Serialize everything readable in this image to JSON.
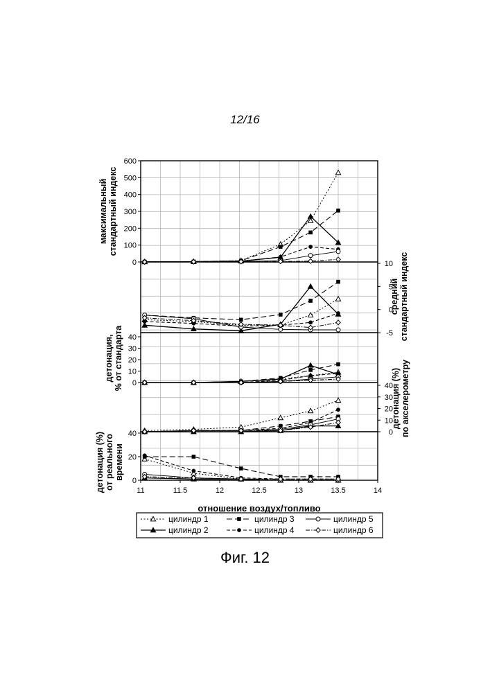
{
  "page_label": "12/16",
  "figure_caption": "Фиг. 12",
  "chart_data": {
    "type": "line",
    "xlabel": "отношение воздух/топливо",
    "x_ticks": [
      "11",
      "11.5",
      "12",
      "12.5",
      "13",
      "13.5",
      "14"
    ],
    "xlim": [
      11,
      14
    ],
    "x": [
      11.05,
      11.67,
      12.27,
      12.77,
      13.15,
      13.5
    ],
    "grid": true,
    "legend_position": "bottom",
    "panels": [
      {
        "id": "max_index",
        "ylabel": "максимальный стандартный индекс",
        "axis": "left",
        "ylim": [
          0,
          600
        ],
        "ticks": [
          "600",
          "500",
          "400",
          "300",
          "200",
          "100",
          "0"
        ],
        "series": [
          {
            "name": "цилиндр 1",
            "values": [
              1,
              2,
              8,
              105,
              245,
              530
            ]
          },
          {
            "name": "цилиндр 2",
            "values": [
              1,
              2,
              5,
              28,
              270,
              115
            ]
          },
          {
            "name": "цилиндр 3",
            "values": [
              1,
              2,
              7,
              90,
              175,
              305
            ]
          },
          {
            "name": "цилиндр 4",
            "values": [
              1,
              1,
              4,
              30,
              90,
              75
            ]
          },
          {
            "name": "цилиндр 5",
            "values": [
              1,
              1,
              3,
              8,
              38,
              62
            ]
          },
          {
            "name": "цилиндр 6",
            "values": [
              0,
              1,
              2,
              3,
              5,
              15
            ]
          }
        ]
      },
      {
        "id": "avg_index",
        "ylabel": "средний стандартный индекс",
        "axis": "right",
        "ylim": [
          -5,
          10
        ],
        "ticks": [
          "10",
          "5",
          "0",
          "-5"
        ],
        "series": [
          {
            "name": "цилиндр 1",
            "values": [
              -2.2,
              -2.6,
              -3.4,
              -3.3,
              -1.2,
              2.3
            ]
          },
          {
            "name": "цилиндр 2",
            "values": [
              -3.4,
              -4.2,
              -4.6,
              -3.2,
              5.0,
              -1.0
            ]
          },
          {
            "name": "цилиндр 3",
            "values": [
              -1.2,
              -1.8,
              -2.2,
              -1.1,
              1.9,
              6.0
            ]
          },
          {
            "name": "цилиндр 4",
            "values": [
              -2.6,
              -3.0,
              -3.6,
              -3.4,
              -2.8,
              -0.8
            ]
          },
          {
            "name": "цилиндр 5",
            "values": [
              -1.2,
              -2.0,
              -3.8,
              -4.3,
              -4.4,
              -4.4
            ]
          },
          {
            "name": "цилиндр 6",
            "values": [
              -1.8,
              -2.4,
              -3.2,
              -3.4,
              -3.9,
              -2.8
            ]
          }
        ]
      },
      {
        "id": "knock_standard",
        "ylabel": "детонация, % от стандарта",
        "axis": "left",
        "ylim": [
          0,
          40
        ],
        "ticks": [
          "40",
          "30",
          "20",
          "10",
          "0"
        ],
        "series": [
          {
            "name": "цилиндр 1",
            "values": [
              0,
              0,
              1,
              3,
              6,
              9
            ]
          },
          {
            "name": "цилиндр 2",
            "values": [
              0,
              0,
              1,
              3,
              15,
              7
            ]
          },
          {
            "name": "цилиндр 3",
            "values": [
              0,
              0,
              1,
              4,
              11,
              16
            ]
          },
          {
            "name": "цилиндр 4",
            "values": [
              0,
              0,
              0,
              2,
              6,
              8
            ]
          },
          {
            "name": "цилиндр 5",
            "values": [
              0,
              0,
              0,
              1,
              3,
              5
            ]
          },
          {
            "name": "цилиндр 6",
            "values": [
              0,
              0,
              0,
              1,
              2,
              3
            ]
          }
        ]
      },
      {
        "id": "knock_accel",
        "ylabel": "детонация (%) по акселерометру",
        "axis": "right",
        "ylim": [
          0,
          40
        ],
        "ticks": [
          "40",
          "30",
          "20",
          "10",
          "0"
        ],
        "series": [
          {
            "name": "цилиндр 1",
            "values": [
              1,
              2,
              4,
              12,
              18,
              27
            ]
          },
          {
            "name": "цилиндр 2",
            "values": [
              0,
              0,
              0,
              1,
              5,
              5
            ]
          },
          {
            "name": "цилиндр 3",
            "values": [
              0,
              1,
              1,
              5,
              9,
              13
            ]
          },
          {
            "name": "цилиндр 4",
            "values": [
              0,
              1,
              1,
              3,
              8,
              19
            ]
          },
          {
            "name": "цилиндр 5",
            "values": [
              0,
              1,
              1,
              2,
              6,
              11
            ]
          },
          {
            "name": "цилиндр 6",
            "values": [
              0,
              1,
              1,
              1,
              4,
              8
            ]
          }
        ]
      },
      {
        "id": "knock_realtime",
        "ylabel": "детонация (%) от реального времени",
        "axis": "left",
        "ylim": [
          0,
          40
        ],
        "ticks": [
          "40",
          "20",
          "0"
        ],
        "series": [
          {
            "name": "цилиндр 1",
            "values": [
              18,
              6,
              1,
              0,
              0,
              0
            ]
          },
          {
            "name": "цилиндр 2",
            "values": [
              2,
              1,
              1,
              0,
              0,
              0
            ]
          },
          {
            "name": "цилиндр 3",
            "values": [
              20,
              20,
              10,
              3,
              3,
              3
            ]
          },
          {
            "name": "цилиндр 4",
            "values": [
              21,
              8,
              2,
              1,
              1,
              1
            ]
          },
          {
            "name": "цилиндр 5",
            "values": [
              5,
              2,
              1,
              0,
              0,
              0
            ]
          },
          {
            "name": "цилиндр 6",
            "values": [
              3,
              2,
              1,
              1,
              1,
              1
            ]
          }
        ]
      }
    ],
    "legend": [
      {
        "name": "цилиндр 1",
        "marker": "open-triangle",
        "line": "dotted"
      },
      {
        "name": "цилиндр 3",
        "marker": "filled-square",
        "line": "long-dash"
      },
      {
        "name": "цилиндр 5",
        "marker": "open-circle",
        "line": "solid"
      },
      {
        "name": "цилиндр 2",
        "marker": "filled-triangle",
        "line": "solid"
      },
      {
        "name": "цилиндр 4",
        "marker": "filled-circle",
        "line": "dash"
      },
      {
        "name": "цилиндр 6",
        "marker": "open-diamond",
        "line": "dash-dot"
      }
    ]
  }
}
